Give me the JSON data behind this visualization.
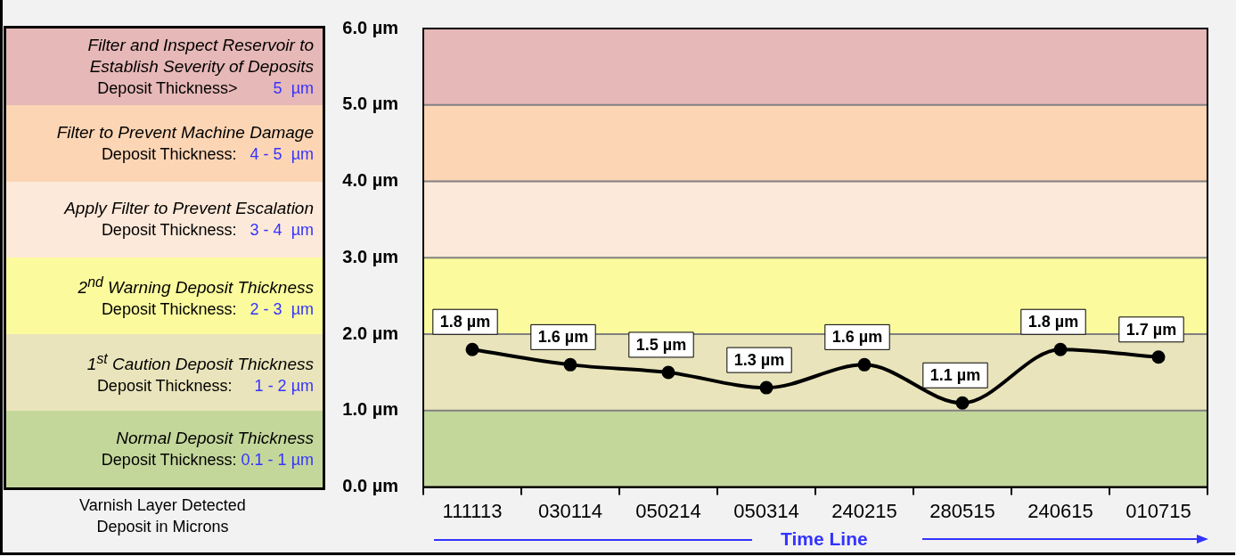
{
  "chart_data": {
    "type": "line",
    "categories": [
      "111113",
      "030114",
      "050214",
      "050314",
      "240215",
      "280515",
      "240615",
      "010715"
    ],
    "values": [
      1.8,
      1.6,
      1.5,
      1.3,
      1.6,
      1.1,
      1.8,
      1.7
    ],
    "value_labels": [
      "1.8 µm",
      "1.6 µm",
      "1.5 µm",
      "1.3 µm",
      "1.6 µm",
      "1.1 µm",
      "1.8 µm",
      "1.7 µm"
    ],
    "color": "#000000",
    "marker": "circle",
    "grid": "y",
    "legend": false,
    "xlabel": "Time Line",
    "ylim": [
      0,
      6
    ],
    "yticks": [
      {
        "value": 0,
        "label": "0.0 µm"
      },
      {
        "value": 1,
        "label": "1.0 µm"
      },
      {
        "value": 2,
        "label": "2.0 µm"
      },
      {
        "value": 3,
        "label": "3.0 µm"
      },
      {
        "value": 4,
        "label": "4.0 µm"
      },
      {
        "value": 5,
        "label": "5.0 µm"
      },
      {
        "value": 6,
        "label": "6.0 µm"
      }
    ],
    "bands": [
      {
        "axis": "y",
        "from": 5,
        "to": 6,
        "color": "#e6b8b7"
      },
      {
        "axis": "y",
        "from": 4,
        "to": 5,
        "color": "#fcd5b4"
      },
      {
        "axis": "y",
        "from": 3,
        "to": 4,
        "color": "#fde9d9"
      },
      {
        "axis": "y",
        "from": 2,
        "to": 3,
        "color": "#fbfb9e"
      },
      {
        "axis": "y",
        "from": 1,
        "to": 2,
        "color": "#e9e4bb"
      },
      {
        "axis": "y",
        "from": 0,
        "to": 1,
        "color": "#c4d79b"
      }
    ],
    "annotations": [
      "Filter and Inspect Reservoir to Establish Severity of Deposits",
      "Deposit Thickness>        5  µm",
      "Filter to Prevent Machine Damage",
      "Deposit Thickness:   4 - 5  µm",
      "Apply Filter to Prevent Escalation",
      "Deposit Thickness:   3 - 4  µm",
      "2$^{nd}$ Warning Deposit Thickness",
      "Deposit Thickness:   2 - 3  µm",
      "1$^{st}$ Caution Deposit Thickness",
      "Deposit Thickness:     1 - 2 µm",
      "Normal Deposit Thickness",
      "Deposit Thickness: 0.1 - 1 µm",
      "Varnish Layer Detected Deposit in Microns"
    ]
  }
}
